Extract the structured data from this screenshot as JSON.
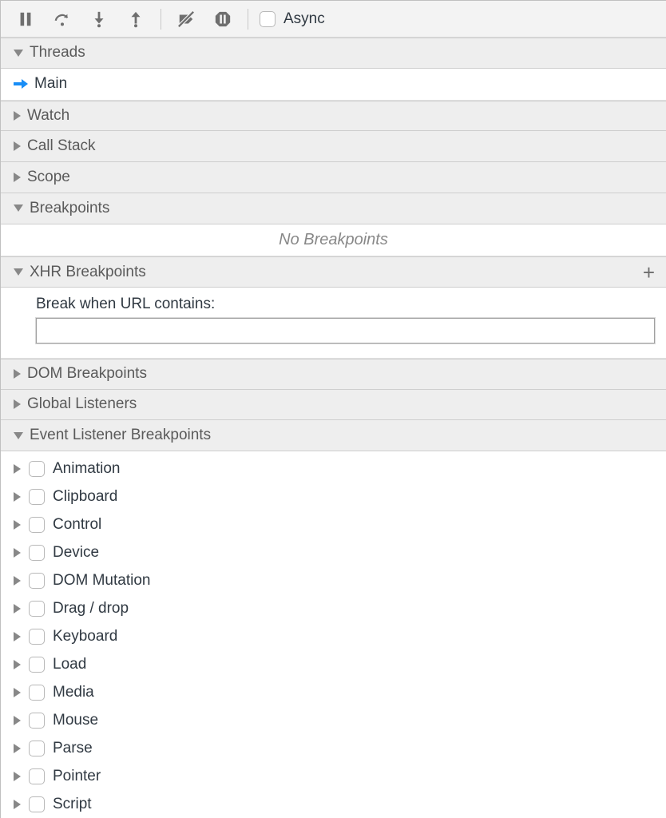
{
  "colors": {
    "panel_bg": "#ffffff",
    "toolbar_bg": "#f3f3f3",
    "header_bg": "#eeeeee",
    "border": "#cecece",
    "icon_gray": "#6e6e6e",
    "accent_blue": "#188df6",
    "text": "#303942",
    "placeholder": "#888888"
  },
  "toolbar": {
    "async_label": "Async",
    "async_checked": false
  },
  "sections": {
    "threads": {
      "title": "Threads",
      "expanded": true,
      "active_thread": "Main"
    },
    "watch": {
      "title": "Watch",
      "expanded": false
    },
    "call_stack": {
      "title": "Call Stack",
      "expanded": false
    },
    "scope": {
      "title": "Scope",
      "expanded": false
    },
    "breakpoints": {
      "title": "Breakpoints",
      "expanded": true,
      "empty_message": "No Breakpoints"
    },
    "xhr": {
      "title": "XHR Breakpoints",
      "expanded": true,
      "input_label": "Break when URL contains:",
      "input_value": ""
    },
    "dom_bp": {
      "title": "DOM Breakpoints",
      "expanded": false
    },
    "global_listeners": {
      "title": "Global Listeners",
      "expanded": false
    },
    "evt_bp": {
      "title": "Event Listener Breakpoints",
      "expanded": true,
      "categories": [
        {
          "label": "Animation",
          "checked": false
        },
        {
          "label": "Clipboard",
          "checked": false
        },
        {
          "label": "Control",
          "checked": false
        },
        {
          "label": "Device",
          "checked": false
        },
        {
          "label": "DOM Mutation",
          "checked": false
        },
        {
          "label": "Drag / drop",
          "checked": false
        },
        {
          "label": "Keyboard",
          "checked": false
        },
        {
          "label": "Load",
          "checked": false
        },
        {
          "label": "Media",
          "checked": false
        },
        {
          "label": "Mouse",
          "checked": false
        },
        {
          "label": "Parse",
          "checked": false
        },
        {
          "label": "Pointer",
          "checked": false
        },
        {
          "label": "Script",
          "checked": false
        }
      ]
    }
  }
}
